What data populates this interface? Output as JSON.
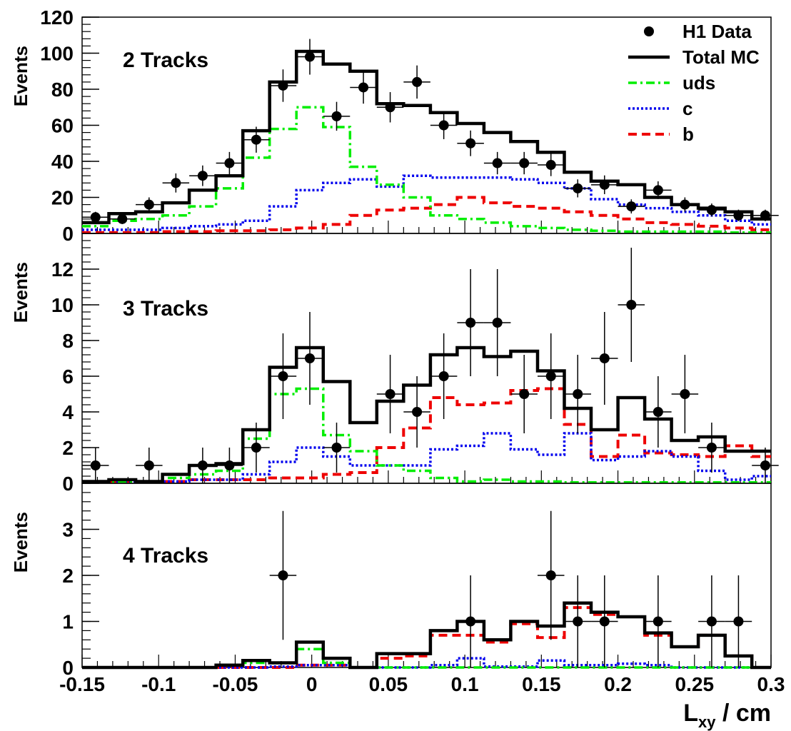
{
  "figure": {
    "x_axis_label_main": "L",
    "x_axis_label_sub": "xy",
    "x_axis_label_unit": " / cm",
    "x_ticks": [
      "-0.15",
      "-0.1",
      "-0.05",
      "0",
      "0.05",
      "0.1",
      "0.15",
      "0.2",
      "0.25",
      "0.3"
    ]
  },
  "legend": {
    "placement": "top-right",
    "entries": [
      {
        "label": "H1 Data",
        "style": "marker"
      },
      {
        "label": "Total MC",
        "style": "solid",
        "color": "#000000"
      },
      {
        "label": "uds",
        "style": "dashdot",
        "color": "#00ee00"
      },
      {
        "label": "c",
        "style": "dotted",
        "color": "#0000ee"
      },
      {
        "label": "b",
        "style": "dashed",
        "color": "#ee0000"
      }
    ]
  },
  "colors": {
    "total": "#000000",
    "uds": "#00ee00",
    "c": "#0000ee",
    "b": "#ee0000",
    "data": "#000000"
  },
  "chart_data": [
    {
      "type": "histogram",
      "label": "2 Tracks",
      "ylabel": "Events",
      "xlim": [
        -0.15,
        0.3
      ],
      "ylim": [
        0,
        120
      ],
      "y_ticks": [
        0,
        20,
        40,
        60,
        80,
        100,
        120
      ],
      "bin_edges": [
        -0.15,
        -0.1325,
        -0.115,
        -0.0975,
        -0.08,
        -0.0625,
        -0.045,
        -0.0275,
        -0.01,
        0.0075,
        0.025,
        0.0425,
        0.06,
        0.0775,
        0.095,
        0.1125,
        0.13,
        0.1475,
        0.165,
        0.1825,
        0.2,
        0.2175,
        0.235,
        0.2525,
        0.27,
        0.2875,
        0.3
      ],
      "series": [
        {
          "name": "Total MC",
          "key": "total",
          "values": [
            6,
            11,
            12,
            17,
            24,
            32,
            57,
            84,
            101,
            94,
            90,
            72,
            71,
            67,
            61,
            56,
            51,
            45,
            34,
            29,
            27,
            20,
            16,
            14,
            12,
            8
          ]
        },
        {
          "name": "uds",
          "key": "uds",
          "values": [
            4,
            7,
            8,
            10,
            15,
            25,
            42,
            58,
            70,
            59,
            37,
            27,
            20,
            10,
            8,
            6,
            4,
            3,
            2,
            1.5,
            1,
            1,
            1,
            1,
            0.5,
            0.5
          ]
        },
        {
          "name": "c",
          "key": "c",
          "values": [
            2,
            2,
            2,
            3,
            4,
            5,
            7,
            15,
            24,
            28,
            30,
            26,
            32,
            31,
            31,
            31,
            30,
            28,
            25,
            19,
            16,
            14,
            12,
            10,
            7,
            5
          ]
        },
        {
          "name": "b",
          "key": "b",
          "values": [
            0.5,
            0.5,
            0.5,
            1,
            1,
            1.5,
            1.5,
            2,
            3,
            5,
            10,
            13,
            14,
            16,
            20,
            17,
            15,
            14,
            12,
            10,
            8,
            6,
            5,
            4,
            3,
            2
          ]
        }
      ],
      "data_points": {
        "x": [
          -0.14125,
          -0.12375,
          -0.10625,
          -0.08875,
          -0.07125,
          -0.05375,
          -0.03625,
          -0.01875,
          -0.00125,
          0.01625,
          0.03375,
          0.05125,
          0.06875,
          0.08625,
          0.10375,
          0.12125,
          0.13875,
          0.15625,
          0.17375,
          0.19125,
          0.20875,
          0.22625,
          0.24375,
          0.26125,
          0.27875,
          0.29625
        ],
        "y": [
          9,
          8,
          16,
          28,
          32,
          39,
          52,
          82,
          98,
          65,
          81,
          70,
          84,
          60,
          50,
          39,
          39,
          38,
          25,
          27,
          15,
          24,
          16,
          13,
          10,
          10
        ],
        "yerr": [
          3,
          2.8,
          4,
          5.3,
          5.7,
          6.2,
          7.2,
          9,
          9.9,
          8,
          9,
          8.4,
          9.2,
          7.7,
          7.1,
          6.2,
          6.2,
          6.2,
          5,
          5.2,
          3.9,
          4.9,
          4,
          3.6,
          3.2,
          3.2
        ]
      }
    },
    {
      "type": "histogram",
      "label": "3 Tracks",
      "ylabel": "Events",
      "xlim": [
        -0.15,
        0.3
      ],
      "ylim": [
        0,
        14
      ],
      "y_ticks": [
        0,
        2,
        4,
        6,
        8,
        10,
        12
      ],
      "bin_edges": [
        -0.15,
        -0.1325,
        -0.115,
        -0.0975,
        -0.08,
        -0.0625,
        -0.045,
        -0.0275,
        -0.01,
        0.0075,
        0.025,
        0.0425,
        0.06,
        0.0775,
        0.095,
        0.1125,
        0.13,
        0.1475,
        0.165,
        0.1825,
        0.2,
        0.2175,
        0.235,
        0.2525,
        0.27,
        0.2875,
        0.3
      ],
      "series": [
        {
          "name": "Total MC",
          "key": "total",
          "values": [
            0.1,
            0.2,
            0.1,
            0.5,
            1,
            1.1,
            3,
            6.5,
            7.6,
            5.7,
            3.4,
            4.6,
            5.5,
            7.2,
            7.6,
            7.1,
            7.4,
            6.3,
            4.2,
            3,
            4.8,
            3.6,
            2.4,
            2.6,
            1.8,
            1.8
          ]
        },
        {
          "name": "uds",
          "key": "uds",
          "values": [
            0.1,
            0.1,
            0.1,
            0.3,
            0.5,
            0.7,
            2.5,
            5,
            5.3,
            2.7,
            1.8,
            1,
            0.7,
            0.3,
            0.1,
            0.2,
            0.1,
            0.1,
            0.05,
            0.05,
            0.05,
            0.05,
            0.05,
            0.05,
            0.05,
            0.05
          ]
        },
        {
          "name": "c",
          "key": "c",
          "values": [
            0.1,
            0.1,
            0.1,
            0.1,
            0.2,
            0.2,
            0.5,
            1.2,
            2,
            1.5,
            1,
            1,
            1,
            1.9,
            2.1,
            2.8,
            1.9,
            1.6,
            2.8,
            1.3,
            1.5,
            1.8,
            1.5,
            0.7,
            0.2,
            0.4
          ]
        },
        {
          "name": "b",
          "key": "b",
          "values": [
            0.1,
            0.1,
            0.1,
            0.1,
            0.2,
            0.2,
            0.2,
            0.3,
            0.3,
            0.5,
            0.6,
            2,
            3.1,
            4.8,
            4.4,
            4.5,
            5.2,
            5.3,
            3.3,
            1.5,
            2.7,
            1.7,
            1.6,
            1.5,
            2.1,
            1.5
          ]
        }
      ],
      "data_points": {
        "x": [
          -0.14125,
          -0.10625,
          -0.07125,
          -0.05375,
          -0.03625,
          -0.01875,
          -0.00125,
          0.01625,
          0.05125,
          0.06875,
          0.08625,
          0.10375,
          0.12125,
          0.13875,
          0.15625,
          0.17375,
          0.19125,
          0.20875,
          0.22625,
          0.24375,
          0.26125,
          0.29625
        ],
        "y": [
          1,
          1,
          1,
          1,
          2,
          6,
          7,
          2,
          5,
          4,
          6,
          9,
          9,
          5,
          6,
          5,
          7,
          10,
          4,
          5,
          2,
          1
        ],
        "yerr": [
          1,
          1,
          1,
          1,
          1.4,
          2.4,
          2.6,
          1.4,
          2.2,
          2,
          2.4,
          3,
          3,
          2.2,
          2.4,
          2.2,
          2.6,
          3.2,
          2,
          2.2,
          1.4,
          1
        ]
      }
    },
    {
      "type": "histogram",
      "label": "4 Tracks",
      "ylabel": "Events",
      "xlim": [
        -0.15,
        0.3
      ],
      "ylim": [
        0,
        4
      ],
      "y_ticks": [
        0,
        1,
        2,
        3
      ],
      "bin_edges": [
        -0.15,
        -0.1325,
        -0.115,
        -0.0975,
        -0.08,
        -0.0625,
        -0.045,
        -0.0275,
        -0.01,
        0.0075,
        0.025,
        0.0425,
        0.06,
        0.0775,
        0.095,
        0.1125,
        0.13,
        0.1475,
        0.165,
        0.1825,
        0.2,
        0.2175,
        0.235,
        0.2525,
        0.27,
        0.2875,
        0.3
      ],
      "series": [
        {
          "name": "Total MC",
          "key": "total",
          "values": [
            0,
            0,
            0,
            0,
            0,
            0.05,
            0.15,
            0.1,
            0.55,
            0.2,
            0,
            0.3,
            0.3,
            0.8,
            1,
            0.6,
            1,
            0.9,
            1.4,
            1.2,
            1.1,
            0.75,
            0.45,
            0.7,
            0.25,
            0
          ]
        },
        {
          "name": "uds",
          "key": "uds",
          "values": [
            0,
            0,
            0,
            0,
            0,
            0.05,
            0.1,
            0.1,
            0.4,
            0.1,
            0,
            0,
            0,
            0,
            0,
            0,
            0,
            0,
            0,
            0,
            0,
            0,
            0,
            0,
            0,
            0
          ]
        },
        {
          "name": "c",
          "key": "c",
          "values": [
            0,
            0,
            0,
            0,
            0,
            0,
            0,
            0.02,
            0.05,
            0.05,
            0,
            0,
            0,
            0.05,
            0.2,
            0.02,
            0.02,
            0.15,
            0.05,
            0.05,
            0.08,
            0.05,
            0,
            0,
            0,
            0
          ]
        },
        {
          "name": "b",
          "key": "b",
          "values": [
            0,
            0,
            0,
            0,
            0,
            0,
            0,
            0,
            0.05,
            0.05,
            0,
            0.2,
            0.25,
            0.7,
            0.7,
            0.55,
            0.95,
            0.65,
            1.3,
            1.15,
            1.1,
            0.7,
            0.45,
            0.7,
            0.25,
            0
          ]
        }
      ],
      "data_points": {
        "x": [
          -0.01875,
          0.10375,
          0.15625,
          0.17375,
          0.19125,
          0.22625,
          0.26125,
          0.27875
        ],
        "y": [
          2,
          1,
          2,
          1,
          1,
          1,
          1,
          1
        ],
        "yerr": [
          1.4,
          1,
          1.4,
          1,
          1,
          1,
          1,
          1
        ]
      }
    }
  ]
}
